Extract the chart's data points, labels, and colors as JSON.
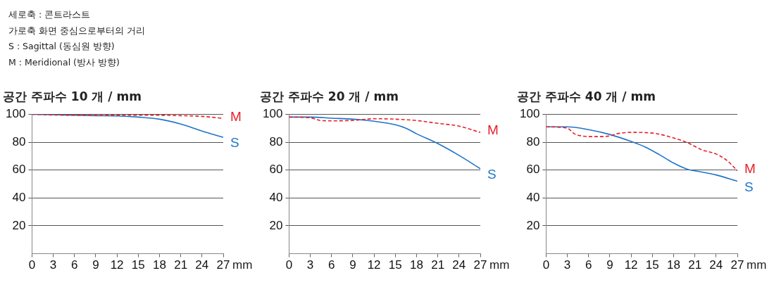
{
  "chart_data": [
    {
      "type": "line",
      "title": "공간 주파수 10 개 / mm",
      "xlabel": "mm",
      "annotations": [
        "세로축 : 콘트라스트",
        "가로축 화면 중심으로부터의 거리",
        "S : Sagittal (동심원 방향)",
        "M : Meridional (방사 방향)"
      ],
      "xlim": [
        0,
        27
      ],
      "xticks": [
        0,
        3,
        6,
        9,
        12,
        15,
        18,
        21,
        24,
        27
      ],
      "ylim": [
        0,
        100
      ],
      "yticks": [
        20,
        40,
        60,
        80,
        100
      ],
      "grid": "y",
      "legend": false,
      "marker": "none",
      "series": [
        {
          "name": "M",
          "color": "#e8202a",
          "line_style": "dashed",
          "x": [
            0,
            3,
            6,
            9,
            12,
            15,
            18,
            21,
            24,
            27
          ],
          "values": [
            100,
            99.5,
            99.3,
            99.2,
            99.3,
            99.4,
            99.3,
            99,
            98.5,
            97
          ]
        },
        {
          "name": "S",
          "color": "#1f74c8",
          "line_style": "solid",
          "x": [
            0,
            3,
            6,
            9,
            12,
            15,
            18,
            21,
            24,
            27
          ],
          "values": [
            100,
            99.7,
            99.3,
            99,
            98.8,
            98,
            96.5,
            93,
            88,
            83.5
          ]
        }
      ]
    },
    {
      "type": "line",
      "title": "공간 주파수 20 개 / mm",
      "xlabel": "mm",
      "xlim": [
        0,
        27
      ],
      "xticks": [
        0,
        3,
        6,
        9,
        12,
        15,
        18,
        21,
        24,
        27
      ],
      "ylim": [
        0,
        100
      ],
      "yticks": [
        20,
        40,
        60,
        80,
        100
      ],
      "grid": "y",
      "legend": false,
      "marker": "none",
      "series": [
        {
          "name": "M",
          "color": "#e8202a",
          "line_style": "dashed",
          "x": [
            0,
            3,
            4.5,
            6,
            9,
            12,
            15,
            18,
            21,
            24,
            27
          ],
          "values": [
            98,
            97.5,
            95.5,
            95.3,
            95.6,
            96.8,
            96.5,
            95.5,
            93.5,
            91.5,
            87
          ]
        },
        {
          "name": "S",
          "color": "#1f74c8",
          "line_style": "solid",
          "x": [
            0,
            3,
            6,
            9,
            12,
            15,
            16.5,
            18,
            21,
            24,
            27
          ],
          "values": [
            98,
            98,
            97.2,
            96.5,
            95,
            92.5,
            90,
            86,
            79,
            70.5,
            61
          ]
        }
      ]
    },
    {
      "type": "line",
      "title": "공간 주파수 40 개 / mm",
      "xlabel": "mm",
      "xlim": [
        0,
        27
      ],
      "xticks": [
        0,
        3,
        6,
        9,
        12,
        15,
        18,
        21,
        24,
        27
      ],
      "ylim": [
        0,
        100
      ],
      "yticks": [
        20,
        40,
        60,
        80,
        100
      ],
      "grid": "y",
      "legend": false,
      "marker": "none",
      "series": [
        {
          "name": "M",
          "color": "#e8202a",
          "line_style": "dashed",
          "x": [
            0,
            3,
            4,
            5,
            6,
            8,
            9,
            10,
            12,
            15,
            18,
            20,
            22,
            24,
            25.5,
            27
          ],
          "values": [
            91,
            90,
            86,
            84.5,
            84,
            84,
            84.5,
            86,
            87,
            86.5,
            83,
            79.5,
            74.5,
            71.5,
            67,
            59.5
          ]
        },
        {
          "name": "S",
          "color": "#1f74c8",
          "line_style": "solid",
          "x": [
            0,
            3,
            6,
            9,
            12,
            14,
            16,
            18,
            20,
            21,
            24,
            27
          ],
          "values": [
            91,
            91,
            89,
            85.5,
            80.5,
            76.5,
            71,
            65,
            60.5,
            59.5,
            56.5,
            52
          ]
        }
      ]
    }
  ]
}
